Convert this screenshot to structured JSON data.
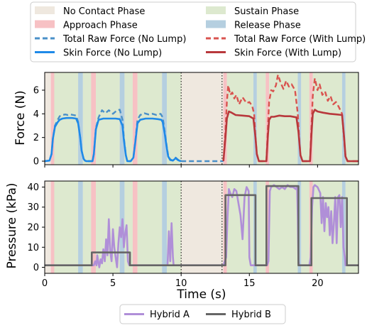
{
  "chart_data": [
    {
      "type": "line",
      "ylabel": "Force (N)",
      "xlim": [
        0,
        23
      ],
      "ylim": [
        -0.3,
        7.5
      ],
      "xticks": [
        0,
        5,
        10,
        15,
        20
      ],
      "yticks": [
        0,
        2,
        4,
        6
      ],
      "phase_legend": [
        {
          "name": "No Contact Phase",
          "color": "#efe8df"
        },
        {
          "name": "Sustain Phase",
          "color": "#dde9cf"
        },
        {
          "name": "Approach Phase",
          "color": "#f7c1c4"
        },
        {
          "name": "Release Phase",
          "color": "#b5cfe0"
        }
      ],
      "phases": [
        {
          "phase": "approach",
          "start": 0.45,
          "end": 0.7
        },
        {
          "phase": "sustain",
          "start": 0.7,
          "end": 2.45
        },
        {
          "phase": "release",
          "start": 2.45,
          "end": 2.8
        },
        {
          "phase": "sustain",
          "start": 2.8,
          "end": 3.4
        },
        {
          "phase": "approach",
          "start": 3.4,
          "end": 3.75
        },
        {
          "phase": "sustain",
          "start": 3.75,
          "end": 5.5
        },
        {
          "phase": "release",
          "start": 5.5,
          "end": 5.85
        },
        {
          "phase": "sustain",
          "start": 5.85,
          "end": 6.45
        },
        {
          "phase": "approach",
          "start": 6.45,
          "end": 6.8
        },
        {
          "phase": "sustain",
          "start": 6.8,
          "end": 8.6
        },
        {
          "phase": "release",
          "start": 8.6,
          "end": 8.95
        },
        {
          "phase": "sustain",
          "start": 8.95,
          "end": 10.0
        },
        {
          "phase": "approach",
          "start": 13.1,
          "end": 13.35
        },
        {
          "phase": "sustain",
          "start": 13.35,
          "end": 15.3
        },
        {
          "phase": "release",
          "start": 15.3,
          "end": 15.55
        },
        {
          "phase": "sustain",
          "start": 15.55,
          "end": 16.2
        },
        {
          "phase": "approach",
          "start": 16.2,
          "end": 16.45
        },
        {
          "phase": "sustain",
          "start": 16.45,
          "end": 18.55
        },
        {
          "phase": "release",
          "start": 18.55,
          "end": 18.8
        },
        {
          "phase": "sustain",
          "start": 18.8,
          "end": 19.4
        },
        {
          "phase": "approach",
          "start": 19.4,
          "end": 19.65
        },
        {
          "phase": "sustain",
          "start": 19.65,
          "end": 21.8
        },
        {
          "phase": "release",
          "start": 21.8,
          "end": 22.05
        },
        {
          "phase": "sustain",
          "start": 22.05,
          "end": 23.0
        }
      ],
      "vlines": [
        10.0,
        13.0
      ],
      "series": [
        {
          "name": "Total Raw Force (No Lump)",
          "color": "#4a90c8",
          "style": "dashed",
          "x": [
            0.0,
            0.35,
            0.5,
            0.6,
            0.75,
            0.95,
            1.1,
            1.3,
            1.5,
            1.7,
            1.9,
            2.1,
            2.3,
            2.45,
            2.6,
            2.7,
            2.85,
            2.95,
            3.05,
            3.5,
            3.6,
            3.75,
            3.95,
            4.2,
            4.45,
            4.7,
            5.0,
            5.3,
            5.5,
            5.7,
            5.8,
            5.95,
            6.05,
            6.3,
            6.5,
            6.65,
            6.8,
            7.0,
            7.3,
            7.6,
            7.9,
            8.2,
            8.5,
            8.65,
            8.8,
            8.95,
            9.05,
            9.2,
            9.4,
            9.6,
            9.75,
            9.85,
            10.0
          ],
          "y": [
            0.0,
            0.05,
            0.6,
            1.9,
            3.0,
            3.5,
            3.8,
            3.9,
            3.95,
            3.9,
            3.95,
            3.9,
            3.85,
            3.3,
            2.0,
            0.9,
            0.2,
            0.05,
            0.0,
            0.0,
            0.6,
            2.8,
            3.7,
            4.3,
            4.05,
            4.3,
            4.0,
            4.3,
            4.35,
            3.5,
            2.0,
            0.5,
            0.0,
            0.0,
            0.3,
            1.8,
            3.5,
            3.9,
            4.05,
            3.95,
            4.0,
            3.9,
            4.0,
            3.7,
            2.5,
            1.2,
            0.5,
            0.15,
            0.05,
            0.3,
            0.15,
            0.05,
            0.0
          ]
        },
        {
          "name": "Skin Force (No Lump)",
          "color": "#1f8ae8",
          "style": "solid",
          "x": [
            0.0,
            0.35,
            0.5,
            0.6,
            0.75,
            0.95,
            1.1,
            1.3,
            1.6,
            2.0,
            2.3,
            2.45,
            2.6,
            2.7,
            2.85,
            2.95,
            3.05,
            3.5,
            3.6,
            3.75,
            3.95,
            4.3,
            4.8,
            5.2,
            5.5,
            5.7,
            5.8,
            5.95,
            6.05,
            6.3,
            6.5,
            6.65,
            6.8,
            7.0,
            7.4,
            7.9,
            8.3,
            8.55,
            8.65,
            8.8,
            8.95,
            9.05,
            9.2,
            9.4,
            9.6,
            9.75,
            9.85,
            10.0
          ],
          "y": [
            0.0,
            0.05,
            0.6,
            1.9,
            2.9,
            3.3,
            3.5,
            3.6,
            3.65,
            3.65,
            3.6,
            3.2,
            2.0,
            0.9,
            0.2,
            0.05,
            0.0,
            0.0,
            0.6,
            2.7,
            3.5,
            3.6,
            3.6,
            3.6,
            3.55,
            3.0,
            1.8,
            0.5,
            0.0,
            0.0,
            0.3,
            1.7,
            3.2,
            3.5,
            3.6,
            3.6,
            3.55,
            3.5,
            3.3,
            2.3,
            1.1,
            0.4,
            0.1,
            0.05,
            0.25,
            0.1,
            0.05,
            0.0
          ]
        },
        {
          "name": "Total Raw Force (No Lump) zero",
          "color": "#4a90c8",
          "style": "dashed",
          "x": [
            10.0,
            13.1
          ],
          "y": [
            0.0,
            0.0
          ]
        },
        {
          "name": "Total Raw Force (With Lump)",
          "color": "#d9534f",
          "style": "dashed",
          "x": [
            13.1,
            13.25,
            13.35,
            13.45,
            13.6,
            13.75,
            13.9,
            14.05,
            14.25,
            14.5,
            14.8,
            15.0,
            15.2,
            15.35,
            15.45,
            15.55,
            15.7,
            16.25,
            16.35,
            16.45,
            16.6,
            16.75,
            16.95,
            17.1,
            17.3,
            17.5,
            17.7,
            17.9,
            18.1,
            18.35,
            18.55,
            18.65,
            18.75,
            18.9,
            19.45,
            19.55,
            19.65,
            19.8,
            20.0,
            20.15,
            20.35,
            20.55,
            20.75,
            20.95,
            21.15,
            21.35,
            21.55,
            21.8,
            21.95,
            22.05,
            22.2,
            23.0
          ],
          "y": [
            0.0,
            2.5,
            5.0,
            6.4,
            5.6,
            5.8,
            5.3,
            5.6,
            4.8,
            5.4,
            4.9,
            5.0,
            4.7,
            4.0,
            2.0,
            0.6,
            0.0,
            0.0,
            2.5,
            5.0,
            6.0,
            5.9,
            6.4,
            7.3,
            6.6,
            6.1,
            6.8,
            6.3,
            6.5,
            6.0,
            4.0,
            2.0,
            0.5,
            0.0,
            0.0,
            2.8,
            5.5,
            7.0,
            6.0,
            6.5,
            5.6,
            5.9,
            5.1,
            5.5,
            4.8,
            5.0,
            4.6,
            4.0,
            1.8,
            0.4,
            0.0,
            0.0
          ]
        },
        {
          "name": "Skin Force (With Lump)",
          "color": "#b8383c",
          "style": "solid",
          "x": [
            13.1,
            13.25,
            13.35,
            13.5,
            13.7,
            14.0,
            14.5,
            15.0,
            15.3,
            15.45,
            15.55,
            15.7,
            16.25,
            16.35,
            16.45,
            16.6,
            16.8,
            17.2,
            17.6,
            18.0,
            18.45,
            18.6,
            18.75,
            18.9,
            19.45,
            19.55,
            19.65,
            19.8,
            20.0,
            20.4,
            20.9,
            21.4,
            21.8,
            21.95,
            22.05,
            22.2,
            23.0
          ],
          "y": [
            0.0,
            2.0,
            3.6,
            4.2,
            4.1,
            3.9,
            3.85,
            3.8,
            3.6,
            2.0,
            0.6,
            0.0,
            0.0,
            2.0,
            3.5,
            3.75,
            3.75,
            3.85,
            3.8,
            3.8,
            3.7,
            2.5,
            0.5,
            0.0,
            0.0,
            2.2,
            4.0,
            4.35,
            4.2,
            4.1,
            4.0,
            3.95,
            3.9,
            2.0,
            0.4,
            0.0,
            0.0
          ]
        }
      ]
    },
    {
      "type": "line",
      "xlabel": "Time (s)",
      "ylabel": "Pressure (kPa)",
      "xlim": [
        0,
        23
      ],
      "ylim": [
        -3,
        43
      ],
      "xticks": [
        0,
        5,
        10,
        15,
        20
      ],
      "yticks": [
        0,
        10,
        20,
        30,
        40
      ],
      "vlines": [
        10.0,
        13.0
      ],
      "series": [
        {
          "name": "Hybrid A",
          "color": "#b08fd8",
          "style": "solid",
          "x": [
            0.0,
            3.6,
            3.7,
            3.8,
            3.85,
            3.95,
            4.0,
            4.1,
            4.2,
            4.3,
            4.4,
            4.5,
            4.6,
            4.7,
            4.8,
            4.9,
            5.0,
            5.1,
            5.2,
            5.3,
            5.4,
            5.5,
            5.6,
            5.7,
            5.8,
            5.9,
            6.0,
            6.1,
            6.2,
            6.5,
            7.0,
            7.5,
            8.0,
            8.5,
            8.8,
            9.0,
            9.1,
            9.2,
            9.3,
            9.4,
            9.45,
            9.5,
            9.6,
            10.0,
            13.1,
            13.3,
            13.4,
            13.5,
            13.6,
            13.75,
            13.9,
            14.05,
            14.2,
            14.35,
            14.5,
            14.65,
            14.8,
            14.95,
            15.0,
            15.1,
            15.15,
            15.3,
            16.3,
            16.4,
            16.45,
            16.5,
            16.6,
            16.8,
            17.0,
            17.2,
            17.4,
            17.6,
            17.8,
            18.0,
            18.2,
            18.4,
            18.5,
            18.55,
            18.6,
            18.65,
            19.4,
            19.5,
            19.6,
            19.7,
            19.8,
            20.0,
            20.2,
            20.3,
            20.4,
            20.5,
            20.6,
            20.7,
            20.8,
            20.9,
            21.0,
            21.1,
            21.2,
            21.3,
            21.4,
            21.5,
            21.6,
            21.7,
            21.8,
            21.9,
            22.0,
            22.05,
            22.1,
            23.0
          ],
          "y": [
            1,
            1,
            3,
            1,
            6,
            2,
            0,
            4,
            2,
            9,
            3,
            14,
            6,
            24,
            8,
            3,
            19,
            10,
            5,
            0,
            12,
            20,
            15,
            24,
            10,
            17,
            21,
            3,
            1,
            1,
            1,
            1,
            1,
            1,
            1,
            1,
            18,
            3,
            22,
            5,
            1,
            1,
            1,
            1,
            1,
            5,
            25,
            39,
            37,
            35,
            39,
            38,
            32,
            26,
            14,
            35,
            40,
            38,
            5,
            1,
            1,
            1,
            1,
            3,
            20,
            38,
            40,
            41,
            40,
            39,
            40,
            39,
            41,
            40,
            40,
            39,
            40,
            25,
            3,
            1,
            1,
            5,
            30,
            40,
            41,
            40,
            37,
            22,
            35,
            18,
            32,
            25,
            30,
            16,
            28,
            12,
            22,
            35,
            12,
            35,
            36,
            20,
            35,
            10,
            5,
            1,
            1,
            1
          ]
        },
        {
          "name": "Hybrid B",
          "color": "#666666",
          "style": "solid",
          "x": [
            0.0,
            3.45,
            3.45,
            6.25,
            6.25,
            13.25,
            13.25,
            15.45,
            15.45,
            16.25,
            16.25,
            18.6,
            18.6,
            19.55,
            19.55,
            22.15,
            22.15,
            23.0
          ],
          "y": [
            1,
            1,
            7.4,
            7.4,
            1,
            1,
            36,
            36,
            1,
            1,
            40.5,
            40.5,
            1,
            1,
            34.5,
            34.5,
            1,
            1
          ]
        }
      ],
      "legend": [
        {
          "name": "Hybrid A",
          "color": "#b08fd8"
        },
        {
          "name": "Hybrid B",
          "color": "#666666"
        }
      ]
    }
  ],
  "legend_top": [
    {
      "name": "No Contact Phase",
      "kind": "patch",
      "color": "#efe8df"
    },
    {
      "name": "Sustain Phase",
      "kind": "patch",
      "color": "#dde9cf"
    },
    {
      "name": "Approach Phase",
      "kind": "patch",
      "color": "#f7c1c4"
    },
    {
      "name": "Release Phase",
      "kind": "patch",
      "color": "#b5cfe0"
    },
    {
      "name": "Total Raw Force (No Lump)",
      "kind": "dashed",
      "color": "#4a90c8"
    },
    {
      "name": "Total Raw Force (With Lump)",
      "kind": "dashed",
      "color": "#d9534f"
    },
    {
      "name": "Skin Force (No Lump)",
      "kind": "solid",
      "color": "#1f8ae8"
    },
    {
      "name": "Skin Force (With Lump)",
      "kind": "solid",
      "color": "#b8383c"
    }
  ]
}
